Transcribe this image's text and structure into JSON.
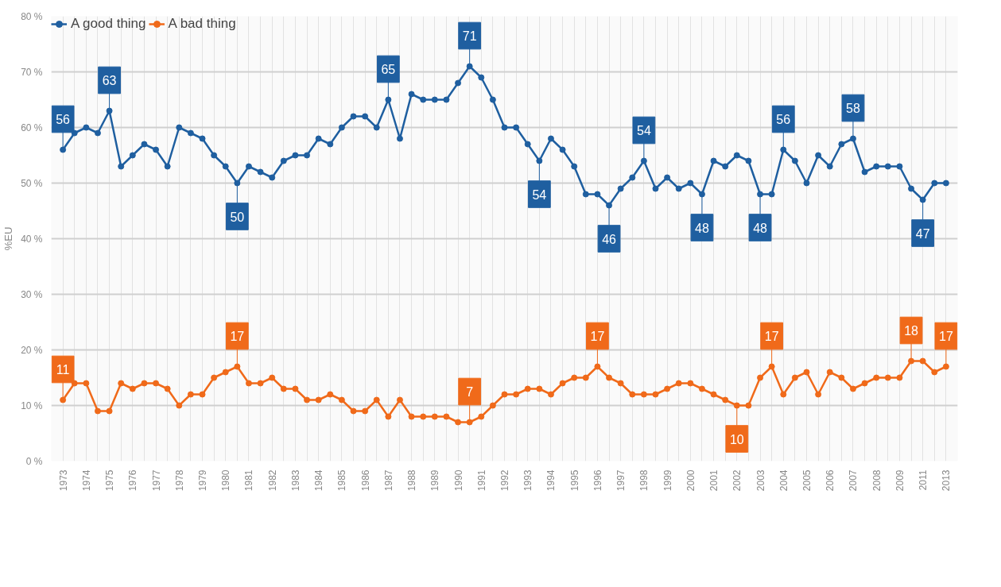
{
  "chart_data": {
    "type": "line",
    "ylabel": "%EU",
    "categories": [
      "1973",
      null,
      "1974",
      null,
      "1975",
      null,
      "1976",
      null,
      "1977",
      null,
      "1978",
      null,
      "1979",
      null,
      "1980",
      null,
      "1981",
      null,
      "1982",
      null,
      "1983",
      null,
      "1984",
      null,
      "1985",
      null,
      "1986",
      null,
      "1987",
      null,
      "1988",
      null,
      "1989",
      null,
      "1990",
      null,
      "1991",
      null,
      "1992",
      null,
      "1993",
      null,
      "1994",
      null,
      "1995",
      null,
      "1996",
      null,
      "1997",
      null,
      "1998",
      null,
      "1999",
      null,
      "2000",
      null,
      "2001",
      null,
      "2002",
      null,
      "2003",
      null,
      "2004",
      null,
      "2005",
      null,
      "2006",
      null,
      "2007",
      null,
      "2008",
      null,
      "2009",
      null,
      "2011",
      null,
      "2013"
    ],
    "series": [
      {
        "name": "A good thing",
        "color": "#1f5fa0",
        "values": [
          56,
          59,
          60,
          59,
          63,
          53,
          55,
          57,
          56,
          53,
          60,
          59,
          58,
          55,
          53,
          50,
          53,
          52,
          51,
          54,
          55,
          55,
          58,
          57,
          60,
          62,
          62,
          60,
          65,
          58,
          66,
          65,
          65,
          65,
          68,
          71,
          69,
          65,
          60,
          60,
          57,
          54,
          58,
          56,
          53,
          48,
          48,
          46,
          49,
          51,
          54,
          49,
          51,
          49,
          50,
          48,
          54,
          53,
          55,
          54,
          48,
          48,
          56,
          54,
          50,
          55,
          53,
          57,
          58,
          52,
          53,
          53,
          53,
          49,
          47,
          50,
          50
        ],
        "value_labels": [
          "56",
          null,
          null,
          null,
          "63",
          null,
          null,
          null,
          null,
          null,
          null,
          null,
          null,
          null,
          null,
          "50",
          null,
          null,
          null,
          null,
          null,
          null,
          null,
          null,
          null,
          null,
          null,
          null,
          "65",
          null,
          null,
          null,
          null,
          null,
          null,
          "71",
          null,
          null,
          null,
          null,
          null,
          "54",
          null,
          null,
          null,
          null,
          null,
          "46",
          null,
          null,
          "54",
          null,
          null,
          null,
          null,
          "48",
          null,
          null,
          null,
          null,
          "48",
          null,
          "56",
          null,
          null,
          null,
          null,
          null,
          "58",
          null,
          null,
          null,
          null,
          null,
          "47",
          null,
          null
        ]
      },
      {
        "name": "A bad thing",
        "color": "#f06a1a",
        "values": [
          11,
          14,
          14,
          9,
          9,
          14,
          13,
          14,
          14,
          13,
          10,
          12,
          12,
          15,
          16,
          17,
          14,
          14,
          15,
          13,
          13,
          11,
          11,
          12,
          11,
          9,
          9,
          11,
          8,
          11,
          8,
          8,
          8,
          8,
          7,
          7,
          8,
          10,
          12,
          12,
          13,
          13,
          12,
          14,
          15,
          15,
          17,
          15,
          14,
          12,
          12,
          12,
          13,
          14,
          14,
          13,
          12,
          11,
          10,
          10,
          15,
          17,
          12,
          15,
          16,
          12,
          16,
          15,
          13,
          14,
          15,
          15,
          15,
          18,
          18,
          16,
          17
        ],
        "value_labels": [
          "11",
          null,
          null,
          null,
          null,
          null,
          null,
          null,
          null,
          null,
          null,
          null,
          null,
          null,
          null,
          "17",
          null,
          null,
          null,
          null,
          null,
          null,
          null,
          null,
          null,
          null,
          null,
          null,
          null,
          null,
          null,
          null,
          null,
          null,
          null,
          "7",
          null,
          null,
          null,
          null,
          null,
          null,
          null,
          null,
          null,
          null,
          "17",
          null,
          null,
          null,
          null,
          null,
          null,
          null,
          null,
          null,
          null,
          null,
          "10",
          null,
          null,
          "17",
          null,
          null,
          null,
          null,
          null,
          null,
          null,
          null,
          null,
          null,
          null,
          "18",
          null,
          null,
          "17"
        ]
      }
    ],
    "ylim": [
      0,
      80
    ],
    "yticks": [
      {
        "value": 0,
        "label": "0 %"
      },
      {
        "value": 10,
        "label": "10 %"
      },
      {
        "value": 20,
        "label": "20 %"
      },
      {
        "value": 30,
        "label": "30 %"
      },
      {
        "value": 40,
        "label": "40 %"
      },
      {
        "value": 50,
        "label": "50 %"
      },
      {
        "value": 60,
        "label": "60 %"
      },
      {
        "value": 70,
        "label": "70 %"
      },
      {
        "value": 80,
        "label": "80 %"
      }
    ],
    "grid": true,
    "legend": "top left",
    "marker": "circle",
    "line_style": "solid"
  }
}
